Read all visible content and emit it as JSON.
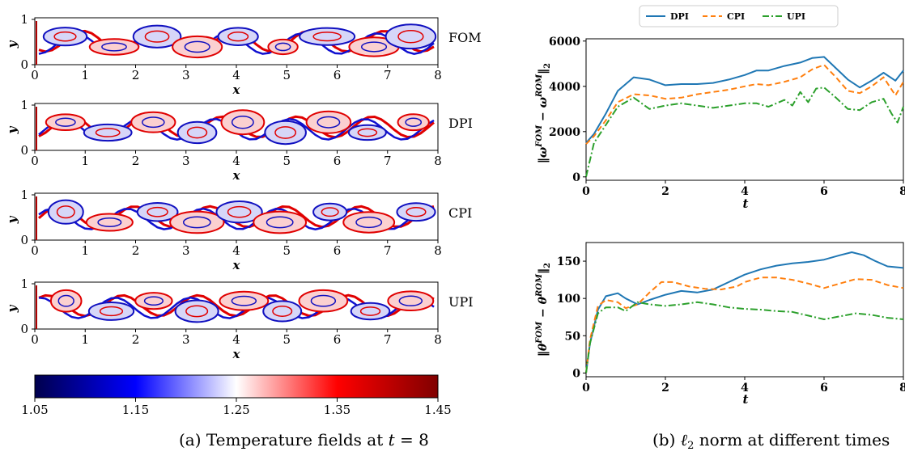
{
  "left": {
    "panels": [
      {
        "label": "FOM"
      },
      {
        "label": "DPI"
      },
      {
        "label": "CPI"
      },
      {
        "label": "UPI"
      }
    ],
    "xticks": [
      "0",
      "1",
      "2",
      "3",
      "4",
      "5",
      "6",
      "7",
      "8"
    ],
    "yticks": [
      "0",
      "1"
    ],
    "xlabel": "x",
    "ylabel": "y",
    "colorbar": {
      "ticks": [
        "1.05",
        "1.15",
        "1.25",
        "1.35",
        "1.45"
      ],
      "colors": [
        "#00004d",
        "#0000ff",
        "#ffffff",
        "#ff0000",
        "#800000"
      ]
    },
    "caption": "(a) Temperature fields at t = 8"
  },
  "right": {
    "legend": [
      "DPI",
      "CPI",
      "UPI"
    ],
    "caption": "(b) ℓ2 norm at different times",
    "top": {
      "ylabel": "‖ωFOM − ωROM‖2",
      "yticks": [
        "0",
        "2000",
        "4000",
        "6000"
      ],
      "xticks": [
        "0",
        "2",
        "4",
        "6",
        "8"
      ],
      "xlabel": "t"
    },
    "bottom": {
      "ylabel": "‖θFOM − θROM‖2",
      "yticks": [
        "0",
        "50",
        "100",
        "150"
      ],
      "xticks": [
        "0",
        "2",
        "4",
        "6",
        "8"
      ],
      "xlabel": "t"
    }
  },
  "chart_data": [
    {
      "type": "line",
      "xlabel": "t",
      "ylabel": "‖ωFOM − ωROM‖2",
      "xlim": [
        0,
        8
      ],
      "ylim": [
        -150,
        6100
      ],
      "legend_position": "top",
      "series": [
        {
          "name": "DPI",
          "color": "#1f77b4",
          "style": "solid",
          "x": [
            0,
            0.2,
            0.5,
            0.8,
            1.2,
            1.6,
            2,
            2.4,
            2.8,
            3.2,
            3.6,
            4,
            4.3,
            4.6,
            5,
            5.4,
            5.7,
            6,
            6.3,
            6.6,
            6.9,
            7.2,
            7.5,
            7.8,
            8
          ],
          "y": [
            1500,
            1900,
            2800,
            3800,
            4400,
            4300,
            4050,
            4100,
            4100,
            4150,
            4300,
            4500,
            4700,
            4700,
            4900,
            5050,
            5250,
            5300,
            4800,
            4300,
            3950,
            4250,
            4600,
            4250,
            4700
          ]
        },
        {
          "name": "CPI",
          "color": "#ff7f0e",
          "style": "dashed",
          "x": [
            0,
            0.2,
            0.5,
            0.8,
            1.2,
            1.6,
            2,
            2.4,
            2.8,
            3.2,
            3.6,
            4,
            4.3,
            4.6,
            5,
            5.4,
            5.7,
            6,
            6.3,
            6.6,
            6.9,
            7.2,
            7.5,
            7.8,
            8
          ],
          "y": [
            1450,
            1800,
            2500,
            3300,
            3650,
            3600,
            3450,
            3500,
            3650,
            3750,
            3850,
            4000,
            4100,
            4050,
            4200,
            4400,
            4750,
            4950,
            4400,
            3800,
            3700,
            4000,
            4400,
            3600,
            4200
          ]
        },
        {
          "name": "UPI",
          "color": "#2ca02c",
          "style": "dashdot",
          "x": [
            0,
            0.2,
            0.5,
            0.8,
            1.2,
            1.6,
            2,
            2.4,
            2.8,
            3.2,
            3.6,
            4,
            4.3,
            4.6,
            5,
            5.2,
            5.4,
            5.6,
            5.8,
            6,
            6.3,
            6.6,
            6.9,
            7.2,
            7.5,
            7.7,
            7.85,
            8
          ],
          "y": [
            0,
            1500,
            2300,
            3100,
            3500,
            3000,
            3150,
            3250,
            3150,
            3050,
            3150,
            3250,
            3250,
            3100,
            3400,
            3150,
            3750,
            3300,
            3900,
            3950,
            3500,
            3000,
            2950,
            3300,
            3450,
            2800,
            2400,
            3100
          ]
        }
      ]
    },
    {
      "type": "line",
      "xlabel": "t",
      "ylabel": "‖θFOM − θROM‖2",
      "xlim": [
        0,
        8
      ],
      "ylim": [
        -5,
        175
      ],
      "series": [
        {
          "name": "DPI",
          "color": "#1f77b4",
          "style": "solid",
          "x": [
            0,
            0.1,
            0.3,
            0.5,
            0.8,
            1,
            1.3,
            1.6,
            2,
            2.4,
            2.8,
            3.2,
            3.6,
            4,
            4.4,
            4.8,
            5.2,
            5.6,
            6,
            6.4,
            6.7,
            7,
            7.3,
            7.6,
            8
          ],
          "y": [
            0,
            40,
            85,
            103,
            107,
            100,
            92,
            98,
            105,
            110,
            108,
            112,
            122,
            132,
            139,
            144,
            147,
            149,
            152,
            158,
            162,
            158,
            150,
            143,
            141
          ]
        },
        {
          "name": "CPI",
          "color": "#ff7f0e",
          "style": "dashed",
          "x": [
            0,
            0.1,
            0.3,
            0.5,
            0.8,
            1,
            1.3,
            1.6,
            1.9,
            2.2,
            2.6,
            3,
            3.4,
            3.8,
            4,
            4.4,
            4.8,
            5.2,
            5.6,
            6,
            6.4,
            6.8,
            7.2,
            7.6,
            8
          ],
          "y": [
            0,
            45,
            90,
            98,
            95,
            87,
            92,
            108,
            122,
            122,
            116,
            113,
            112,
            116,
            122,
            128,
            128,
            125,
            120,
            114,
            120,
            126,
            125,
            118,
            114
          ]
        },
        {
          "name": "UPI",
          "color": "#2ca02c",
          "style": "dashdot",
          "x": [
            0,
            0.1,
            0.3,
            0.5,
            0.8,
            1,
            1.3,
            1.6,
            2,
            2.4,
            2.8,
            3.2,
            3.6,
            4,
            4.4,
            4.8,
            5.2,
            5.6,
            6,
            6.4,
            6.8,
            7.2,
            7.6,
            8
          ],
          "y": [
            0,
            40,
            80,
            88,
            88,
            83,
            95,
            92,
            90,
            92,
            95,
            92,
            88,
            86,
            85,
            83,
            82,
            77,
            72,
            76,
            80,
            78,
            74,
            72
          ]
        }
      ]
    }
  ]
}
